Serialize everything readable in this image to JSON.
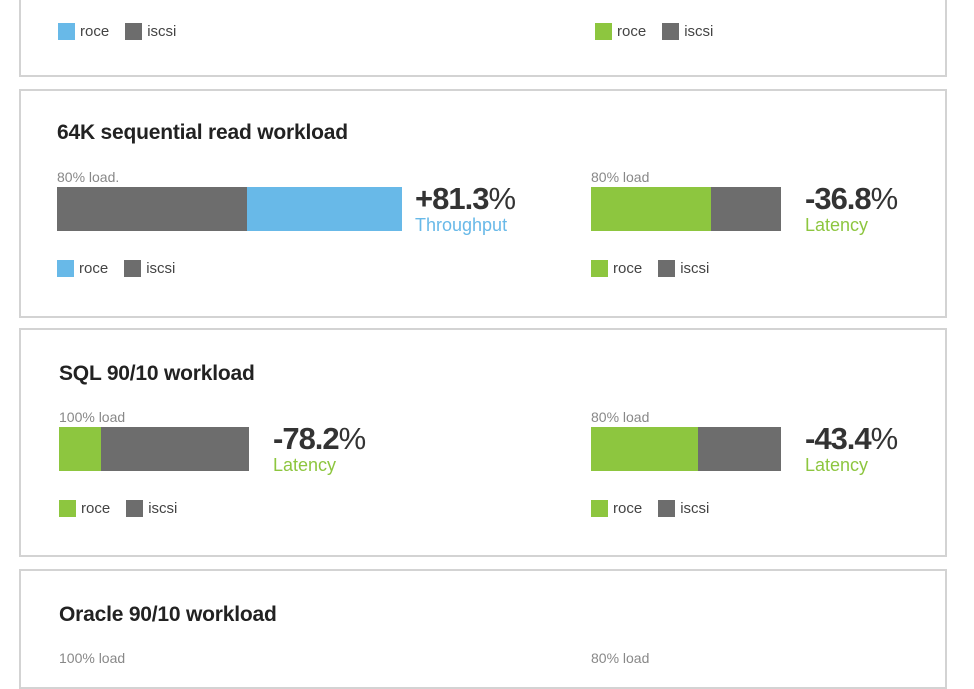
{
  "colors": {
    "roce_blue": "#68b9e8",
    "roce_green": "#8dc63f",
    "iscsi_gray": "#6d6d6d"
  },
  "legend": {
    "roce": "roce",
    "iscsi": "iscsi"
  },
  "top_card": {
    "left_panel": {
      "roce_color": "#68b9e8"
    },
    "right_panel": {
      "roce_color": "#8dc63f"
    }
  },
  "cards": [
    {
      "title": "64K sequential read workload",
      "panels": [
        {
          "load": "80% load.",
          "value": "+81.3",
          "unit": "%",
          "metric": "Throughput",
          "roce_color": "#68b9e8",
          "roce_first": false,
          "iscsi_share": 0.551
        },
        {
          "load": "80% load",
          "value": "-36.8",
          "unit": "%",
          "metric": "Latency",
          "roce_color": "#8dc63f",
          "roce_first": true,
          "roce_share": 0.632
        }
      ]
    },
    {
      "title": "SQL 90/10 workload",
      "panels": [
        {
          "load": "100% load",
          "value": "-78.2",
          "unit": "%",
          "metric": "Latency",
          "roce_color": "#8dc63f",
          "roce_first": true,
          "roce_share": 0.218
        },
        {
          "load": "80% load",
          "value": "-43.4",
          "unit": "%",
          "metric": "Latency",
          "roce_color": "#8dc63f",
          "roce_first": true,
          "roce_share": 0.566
        }
      ]
    },
    {
      "title": "Oracle 90/10 workload",
      "panels": [
        {
          "load": "100% load"
        },
        {
          "load": "80% load"
        }
      ]
    }
  ]
}
